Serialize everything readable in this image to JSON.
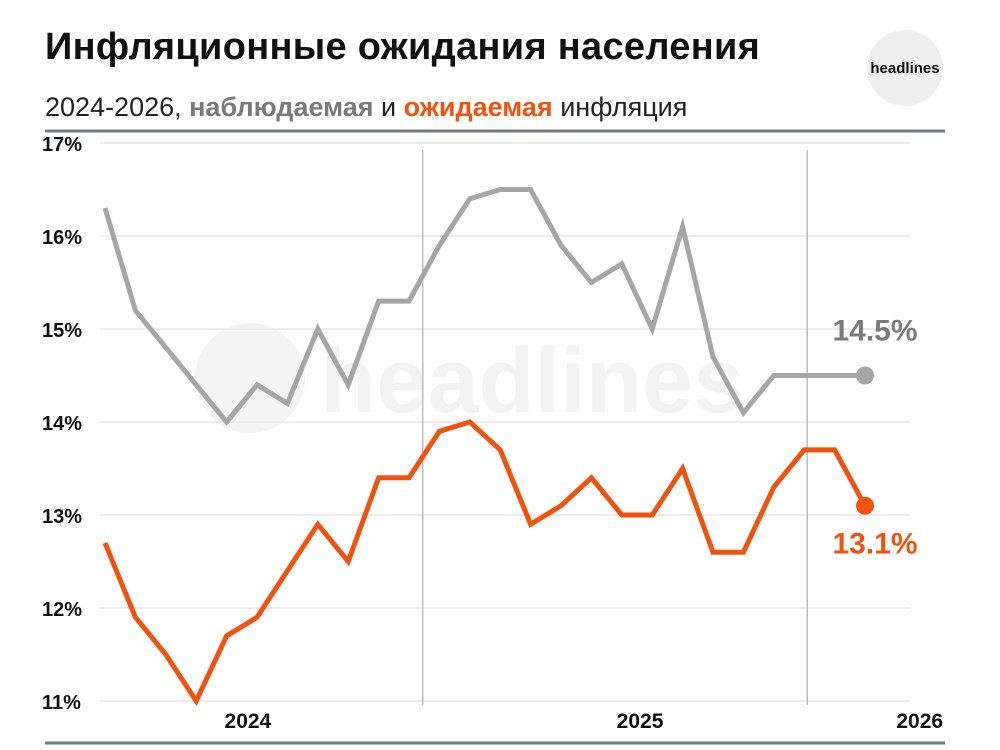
{
  "title": "Инфляционные ожидания населения",
  "subtitle": {
    "prefix": "2024-2026, ",
    "observed": "наблюдаемая",
    "middle": " и ",
    "expected": "ожидаемая",
    "suffix": " инфляция"
  },
  "logo": "headlines",
  "watermark": "headlines",
  "colors": {
    "observed": "#a6a6a6",
    "expected": "#f0530f",
    "observed_label": "#7a7a7a",
    "grid": "#e6e6e6",
    "rule": "#777a85"
  },
  "chart_data": {
    "type": "line",
    "title": "Инфляционные ожидания населения",
    "ylim": [
      11,
      17
    ],
    "yticks": [
      11,
      12,
      13,
      14,
      15,
      16,
      17
    ],
    "ytick_labels": [
      "11%",
      "12%",
      "13%",
      "14%",
      "15%",
      "16%",
      "17%"
    ],
    "xtick_labels": [
      "2024",
      "2025",
      "2026"
    ],
    "grid": true,
    "series": [
      {
        "name": "наблюдаемая",
        "end_label": "14.5%",
        "values": [
          16.3,
          15.2,
          14.8,
          14.4,
          14.0,
          14.4,
          14.2,
          15.0,
          14.4,
          15.3,
          15.3,
          15.9,
          16.4,
          16.5,
          16.5,
          15.9,
          15.5,
          15.7,
          15.0,
          16.1,
          14.7,
          14.1,
          14.5,
          14.5,
          14.5,
          14.5
        ]
      },
      {
        "name": "ожидаемая",
        "end_label": "13.1%",
        "values": [
          12.7,
          11.9,
          11.5,
          11.0,
          11.7,
          11.9,
          12.4,
          12.9,
          12.5,
          13.4,
          13.4,
          13.9,
          14.0,
          13.7,
          12.9,
          13.1,
          13.4,
          13.0,
          13.0,
          13.5,
          12.6,
          12.6,
          13.3,
          13.7,
          13.7,
          13.1
        ]
      }
    ]
  }
}
